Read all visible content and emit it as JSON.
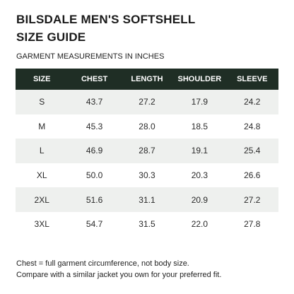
{
  "header": {
    "title_lines": [
      "BILSDALE MEN'S SOFTSHELL",
      "SIZE GUIDE"
    ],
    "subtitle": "GARMENT MEASUREMENTS IN INCHES"
  },
  "table": {
    "columns": [
      "SIZE",
      "CHEST",
      "LENGTH",
      "SHOULDER",
      "SLEEVE"
    ],
    "rows": [
      [
        "S",
        "43.7",
        "27.2",
        "17.9",
        "24.2"
      ],
      [
        "M",
        "45.3",
        "28.0",
        "18.5",
        "24.8"
      ],
      [
        "L",
        "46.9",
        "28.7",
        "19.1",
        "25.4"
      ],
      [
        "XL",
        "50.0",
        "30.3",
        "20.3",
        "26.6"
      ],
      [
        "2XL",
        "51.6",
        "31.1",
        "20.9",
        "27.2"
      ],
      [
        "3XL",
        "54.7",
        "31.5",
        "22.0",
        "27.8"
      ]
    ]
  },
  "notes": [
    "Chest = full garment circumference, not body size.",
    "Compare with a similar jacket you own for your preferred fit."
  ]
}
